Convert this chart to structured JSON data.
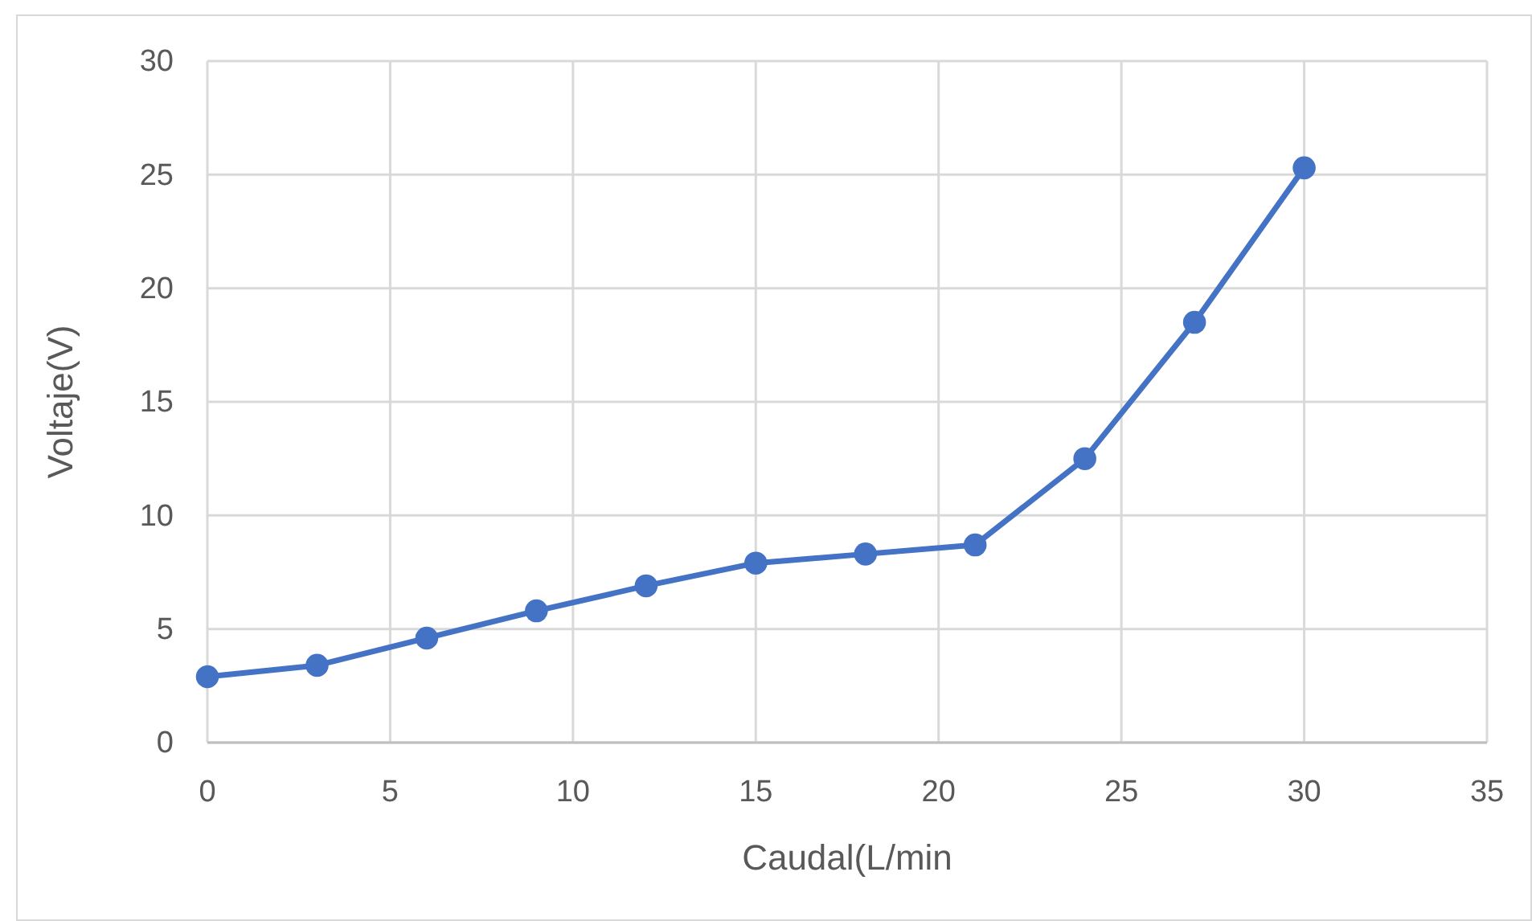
{
  "chart_data": {
    "type": "line",
    "xlabel": "Caudal(L/min",
    "ylabel": "Voltaje(V)",
    "x": [
      0,
      3,
      6,
      9,
      12,
      15,
      18,
      21,
      24,
      27,
      30
    ],
    "series": [
      {
        "color": "#4472c4",
        "values": [
          2.9,
          3.4,
          4.6,
          5.8,
          6.9,
          7.9,
          8.3,
          8.7,
          12.5,
          18.5,
          25.3
        ]
      }
    ],
    "xlim": [
      0,
      35
    ],
    "xticks": [
      0,
      5,
      10,
      15,
      20,
      25,
      30,
      35
    ],
    "ylim": [
      0,
      30
    ],
    "yticks": [
      0,
      5,
      10,
      15,
      20,
      25,
      30
    ],
    "grid": true,
    "marker": "circle",
    "line_style": "solid"
  }
}
